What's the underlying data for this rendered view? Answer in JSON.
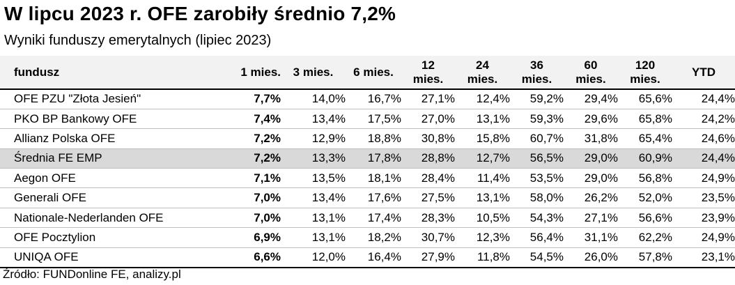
{
  "title": "W lipcu 2023 r. OFE zarobiły średnio 7,2%",
  "subtitle": "Wyniki funduszy emerytalnych (lipiec 2023)",
  "source": "Źródło: FUNDonline FE, analizy.pl",
  "colors": {
    "header_bg": "#f2f2f2",
    "highlight_row_bg": "#d9d9d9"
  },
  "chart_data": {
    "type": "table",
    "title": "W lipcu 2023 r. OFE zarobiły średnio 7,2%",
    "columns": [
      {
        "l1": "fundusz",
        "l2": ""
      },
      {
        "l1": "1 mies.",
        "l2": ""
      },
      {
        "l1": "3 mies.",
        "l2": ""
      },
      {
        "l1": "6 mies.",
        "l2": ""
      },
      {
        "l1": "12",
        "l2": "mies."
      },
      {
        "l1": "24",
        "l2": "mies."
      },
      {
        "l1": "36",
        "l2": "mies."
      },
      {
        "l1": "60",
        "l2": "mies."
      },
      {
        "l1": "120",
        "l2": "mies."
      },
      {
        "l1": "YTD",
        "l2": ""
      }
    ],
    "rows": [
      {
        "name": "OFE PZU \"Złota Jesień\"",
        "values": [
          "7,7%",
          "14,0%",
          "16,7%",
          "27,1%",
          "12,4%",
          "59,2%",
          "29,4%",
          "65,6%",
          "24,4%"
        ],
        "highlight": false
      },
      {
        "name": "PKO BP Bankowy OFE",
        "values": [
          "7,4%",
          "13,4%",
          "17,5%",
          "27,0%",
          "13,1%",
          "59,3%",
          "29,6%",
          "65,8%",
          "24,2%"
        ],
        "highlight": false
      },
      {
        "name": "Allianz Polska OFE",
        "values": [
          "7,2%",
          "12,9%",
          "18,8%",
          "30,8%",
          "15,8%",
          "60,7%",
          "31,8%",
          "65,4%",
          "24,6%"
        ],
        "highlight": false
      },
      {
        "name": "Średnia FE EMP",
        "values": [
          "7,2%",
          "13,3%",
          "17,8%",
          "28,8%",
          "12,7%",
          "56,5%",
          "29,0%",
          "60,9%",
          "24,4%"
        ],
        "highlight": true
      },
      {
        "name": "Aegon OFE",
        "values": [
          "7,1%",
          "13,5%",
          "18,1%",
          "28,4%",
          "11,4%",
          "53,5%",
          "29,0%",
          "56,8%",
          "24,9%"
        ],
        "highlight": false
      },
      {
        "name": "Generali OFE",
        "values": [
          "7,0%",
          "13,4%",
          "17,6%",
          "27,5%",
          "13,1%",
          "58,0%",
          "26,2%",
          "52,0%",
          "23,5%"
        ],
        "highlight": false
      },
      {
        "name": "Nationale-Nederlanden OFE",
        "values": [
          "7,0%",
          "13,1%",
          "17,4%",
          "28,3%",
          "10,5%",
          "54,3%",
          "27,1%",
          "56,6%",
          "23,9%"
        ],
        "highlight": false
      },
      {
        "name": "OFE Pocztylion",
        "values": [
          "6,9%",
          "13,1%",
          "18,2%",
          "30,7%",
          "12,3%",
          "56,4%",
          "31,1%",
          "62,2%",
          "24,9%"
        ],
        "highlight": false
      },
      {
        "name": "UNIQA OFE",
        "values": [
          "6,6%",
          "12,0%",
          "16,4%",
          "27,9%",
          "11,8%",
          "54,5%",
          "26,0%",
          "57,8%",
          "23,1%"
        ],
        "highlight": false
      }
    ]
  }
}
